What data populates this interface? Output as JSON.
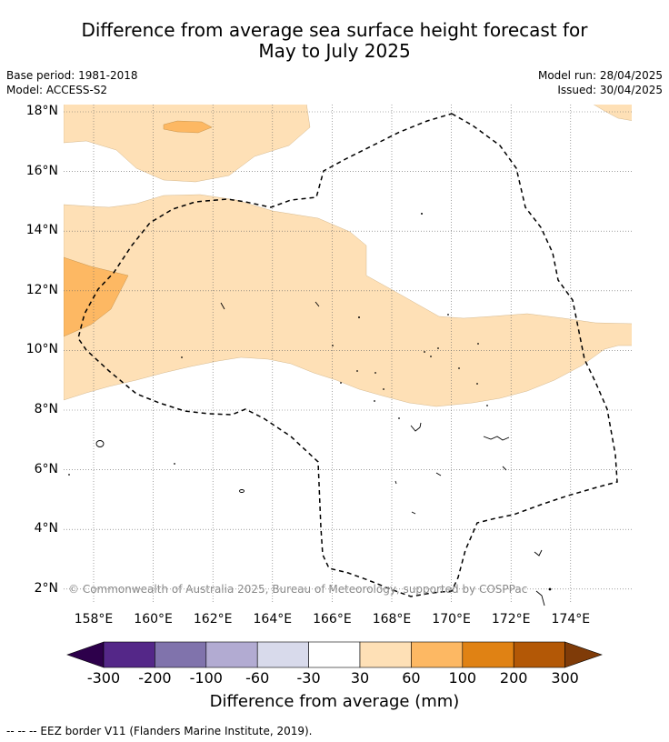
{
  "title_line1": "Difference from average sea surface height forecast for",
  "title_line2": "May to July 2025",
  "base_period": "Base period: 1981-2018",
  "model": "Model: ACCESS-S2",
  "model_run": "Model run: 28/04/2025",
  "issued": "Issued: 30/04/2025",
  "lat_labels": [
    "18°N",
    "16°N",
    "14°N",
    "12°N",
    "10°N",
    "8°N",
    "6°N",
    "4°N",
    "2°N"
  ],
  "lon_labels": [
    "158°E",
    "160°E",
    "162°E",
    "164°E",
    "166°E",
    "168°E",
    "170°E",
    "172°E",
    "174°E"
  ],
  "copyright": "© Commonwealth of Australia 2025, Bureau of Meteorology, supported by COSPPac",
  "colorbar": {
    "label": "Difference from average (mm)",
    "ticks": [
      "-300",
      "-200",
      "-100",
      "-60",
      "-30",
      "30",
      "60",
      "100",
      "200",
      "300"
    ],
    "colors": {
      "below_min": "#2d004b",
      "m300_m200": "#542788",
      "m200_m100": "#8073ac",
      "m100_m60": "#b2abd2",
      "m60_m30": "#d8daeb",
      "m30_30": "#ffffff",
      "p30_60": "#fee0b6",
      "p60_100": "#fdb863",
      "p100_200": "#e08214",
      "p200_300": "#b35806",
      "above_max": "#7f3b08"
    }
  },
  "footnote": "--  --  -- EEZ border V11 (Flanders Marine Institute, 2019)."
}
